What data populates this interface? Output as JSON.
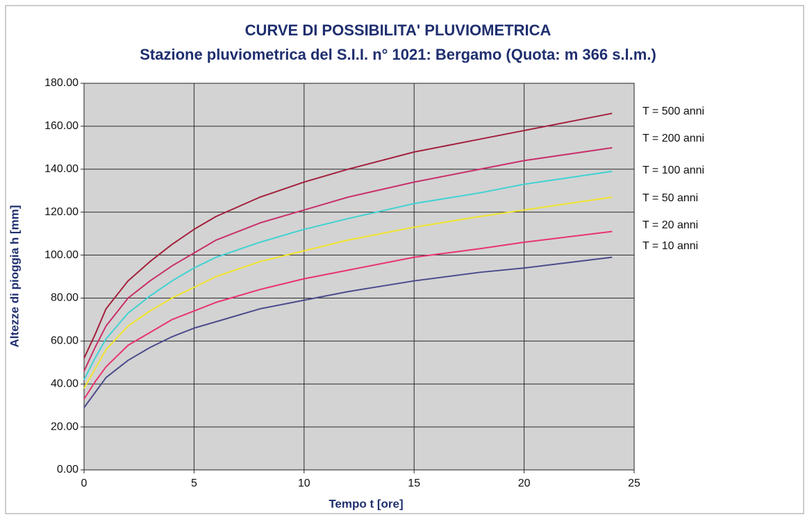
{
  "chart_data": {
    "type": "line",
    "title": "CURVE DI POSSIBILITA' PLUVIOMETRICA",
    "subtitle": "Stazione pluviometrica del S.I.I. n° 1021:  Bergamo (Quota: m 366 s.l.m.)",
    "x_label": "Tempo t [ore]",
    "y_label": "Altezze di pioggia h [mm]",
    "x": [
      0,
      0.5,
      1,
      2,
      3,
      4,
      5,
      6,
      8,
      10,
      12,
      15,
      18,
      20,
      24
    ],
    "series": [
      {
        "name": "T = 500 anni",
        "color": "#a3203c",
        "values": [
          52,
          63,
          75,
          88,
          97,
          105,
          112,
          118,
          127,
          134,
          140,
          148,
          154,
          158,
          166
        ]
      },
      {
        "name": "T = 200 anni",
        "color": "#c8306a",
        "values": [
          46,
          57,
          67,
          80,
          88,
          95,
          101,
          107,
          115,
          121,
          127,
          134,
          140,
          144,
          150
        ]
      },
      {
        "name": "T = 100 anni",
        "color": "#3fd2d2",
        "values": [
          42,
          52,
          61,
          73,
          81,
          88,
          94,
          99,
          106,
          112,
          117,
          124,
          129,
          133,
          139
        ]
      },
      {
        "name": "T = 50 anni",
        "color": "#f2e42e",
        "values": [
          38,
          47,
          56,
          67,
          74,
          80,
          85,
          90,
          97,
          102,
          107,
          113,
          118,
          121,
          127
        ]
      },
      {
        "name": "T = 20 anni",
        "color": "#e8336f",
        "values": [
          33,
          41,
          48,
          58,
          64,
          70,
          74,
          78,
          84,
          89,
          93,
          99,
          103,
          106,
          111
        ]
      },
      {
        "name": "T = 10 anni",
        "color": "#4b4b8c",
        "values": [
          29,
          36,
          43,
          51,
          57,
          62,
          66,
          69,
          75,
          79,
          83,
          88,
          92,
          94,
          99
        ]
      }
    ],
    "xlim": [
      0,
      25
    ],
    "xticks": [
      0,
      5,
      10,
      15,
      20,
      25
    ],
    "ylim": [
      0,
      180
    ],
    "yticks": [
      {
        "value": 0,
        "label": "0.00"
      },
      {
        "value": 20,
        "label": "20.00"
      },
      {
        "value": 40,
        "label": "40.00"
      },
      {
        "value": 60,
        "label": "60.00"
      },
      {
        "value": 80,
        "label": "80.00"
      },
      {
        "value": 100,
        "label": "100.00"
      },
      {
        "value": 120,
        "label": "120.00"
      },
      {
        "value": 140,
        "label": "140.00"
      },
      {
        "value": 160,
        "label": "160.00"
      },
      {
        "value": 180,
        "label": "180.00"
      }
    ],
    "grid": true,
    "legend": "right"
  }
}
